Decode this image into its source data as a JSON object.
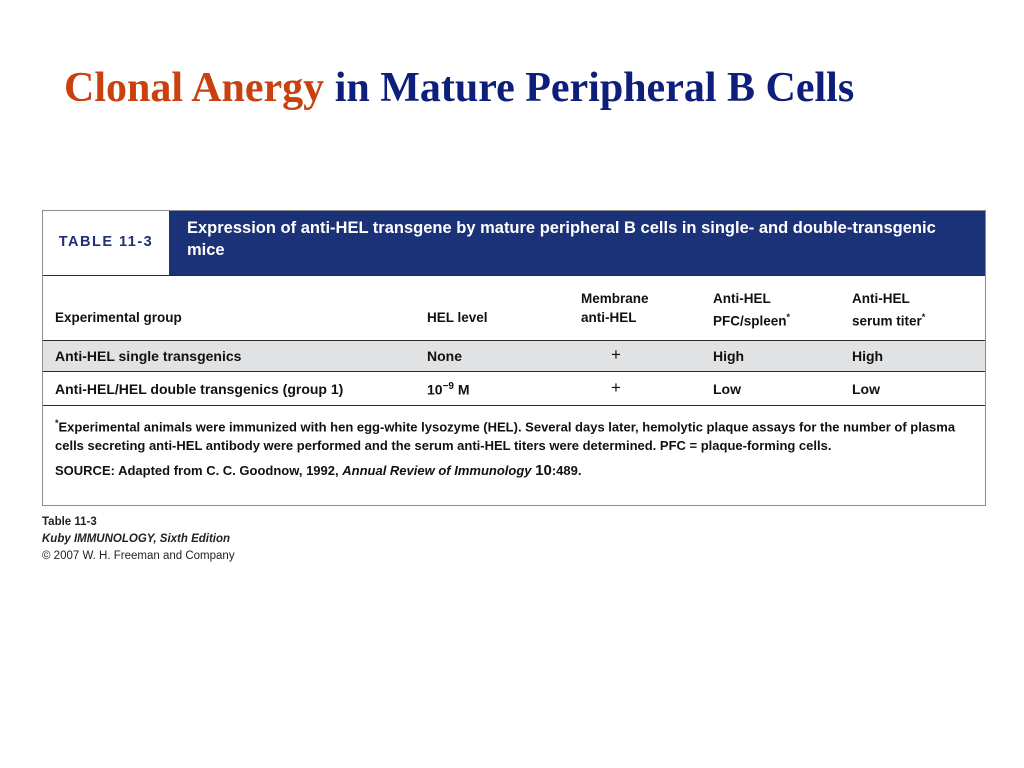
{
  "slide": {
    "title_accent": "Clonal Anergy",
    "title_rest": "in Mature Peripheral B Cells",
    "colors": {
      "accent": "#c8410f",
      "title": "#0d1f7a",
      "table_header_bg": "#1c3278"
    }
  },
  "table": {
    "label": "TABLE 11-3",
    "caption": "Expression of anti-HEL transgene by mature peripheral B cells in single- and double-transgenic mice",
    "columns": [
      {
        "line1": "",
        "line2": "Experimental group",
        "sup": ""
      },
      {
        "line1": "",
        "line2": "HEL level",
        "sup": ""
      },
      {
        "line1": "Membrane",
        "line2": "anti-HEL",
        "sup": ""
      },
      {
        "line1": "Anti-HEL",
        "line2": "PFC/spleen",
        "sup": "*"
      },
      {
        "line1": "Anti-HEL",
        "line2": "serum titer",
        "sup": "*"
      }
    ],
    "rows": [
      {
        "group": "Anti-HEL single transgenics",
        "hel_level": "None",
        "membrane": "+",
        "pfc": "High",
        "titer": "High"
      },
      {
        "group": "Anti-HEL/HEL double transgenics (group 1)",
        "hel_level_base": "10",
        "hel_level_exp": "−9",
        "hel_level_unit": "M",
        "membrane": "+",
        "pfc": "Low",
        "titer": "Low"
      }
    ],
    "footnote_mark": "*",
    "footnote": "Experimental animals were immunized with hen egg-white lysozyme (HEL). Several days later, hemolytic plaque assays for the number of plasma cells secreting anti-HEL antibody were performed and the serum anti-HEL titers were determined. PFC = plaque-forming cells.",
    "source_prefix": "SOURCE: Adapted from C. C. Goodnow, 1992,",
    "source_journal": "Annual Review of Immunology",
    "source_volume": "10",
    "source_pages": ":489."
  },
  "credit": {
    "line1": "Table 11-3",
    "line2": "Kuby IMMUNOLOGY, Sixth Edition",
    "line3": "© 2007 W. H. Freeman and Company"
  }
}
